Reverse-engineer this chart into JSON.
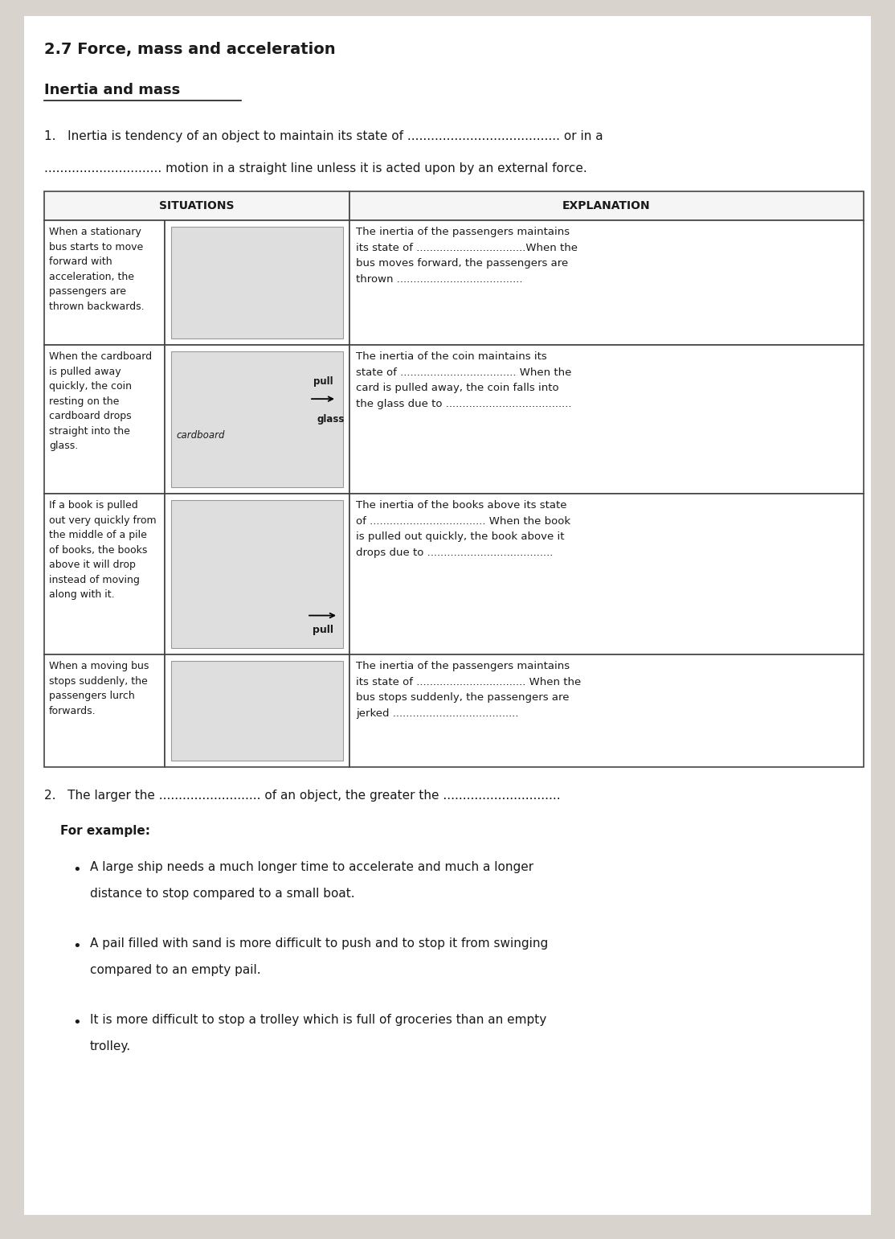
{
  "title": "2.7 Force, mass and acceleration",
  "subtitle": "Inertia and mass",
  "bg_color": "#d8d4cd",
  "page_bg": "#ffffff",
  "q1_text_line1": "1.   Inertia is tendency of an object to maintain its state of ....................................... or in a",
  "q1_text_line2": ".............................. motion in a straight line unless it is acted upon by an external force.",
  "table_header_left": "SITUATIONS",
  "table_header_right": "EXPLANATION",
  "row1_situation": "When a stationary\nbus starts to move\nforward with\nacceleration, the\npassengers are\nthrown backwards.",
  "row1_explanation": "The inertia of the passengers maintains\nits state of .................................When the\nbus moves forward, the passengers are\nthrown ......................................",
  "row2_situation": "When the cardboard\nis pulled away\nquickly, the coin\nresting on the\ncardboard drops\nstraight into the\nglass.",
  "row2_explanation": "The inertia of the coin maintains its\nstate of ................................... When the\ncard is pulled away, the coin falls into\nthe glass due to ......................................",
  "row3_situation": "If a book is pulled\nout very quickly from\nthe middle of a pile\nof books, the books\nabove it will drop\ninstead of moving\nalong with it.",
  "row3_explanation": "The inertia of the books above its state\nof ................................... When the book\nis pulled out quickly, the book above it\ndrops due to ......................................",
  "row4_situation": "When a moving bus\nstops suddenly, the\npassengers lurch\nforwards.",
  "row4_explanation": "The inertia of the passengers maintains\nits state of ................................. When the\nbus stops suddenly, the passengers are\njerked ......................................",
  "q2_text": "2.   The larger the .......................... of an object, the greater the ..............................",
  "for_example": "For example:",
  "bullet1_line1": "A large ship needs a much longer time to accelerate and much a longer",
  "bullet1_line2": "distance to stop compared to a small boat.",
  "bullet2_line1": "A pail filled with sand is more difficult to push and to stop it from swinging",
  "bullet2_line2": "compared to an empty pail.",
  "bullet3_line1": "It is more difficult to stop a trolley which is full of groceries than an empty",
  "bullet3_line2": "trolley.",
  "row2_img_label1": "cardboard",
  "row2_img_label2": "pull",
  "row2_img_label3": "glass",
  "row3_img_label": "pull",
  "text_color": "#1a1a1a",
  "table_border_color": "#444444",
  "img_color": "#cccccc",
  "font_size_title": 14,
  "font_size_subtitle": 13,
  "font_size_body": 11,
  "font_size_table": 10,
  "font_size_small": 9
}
